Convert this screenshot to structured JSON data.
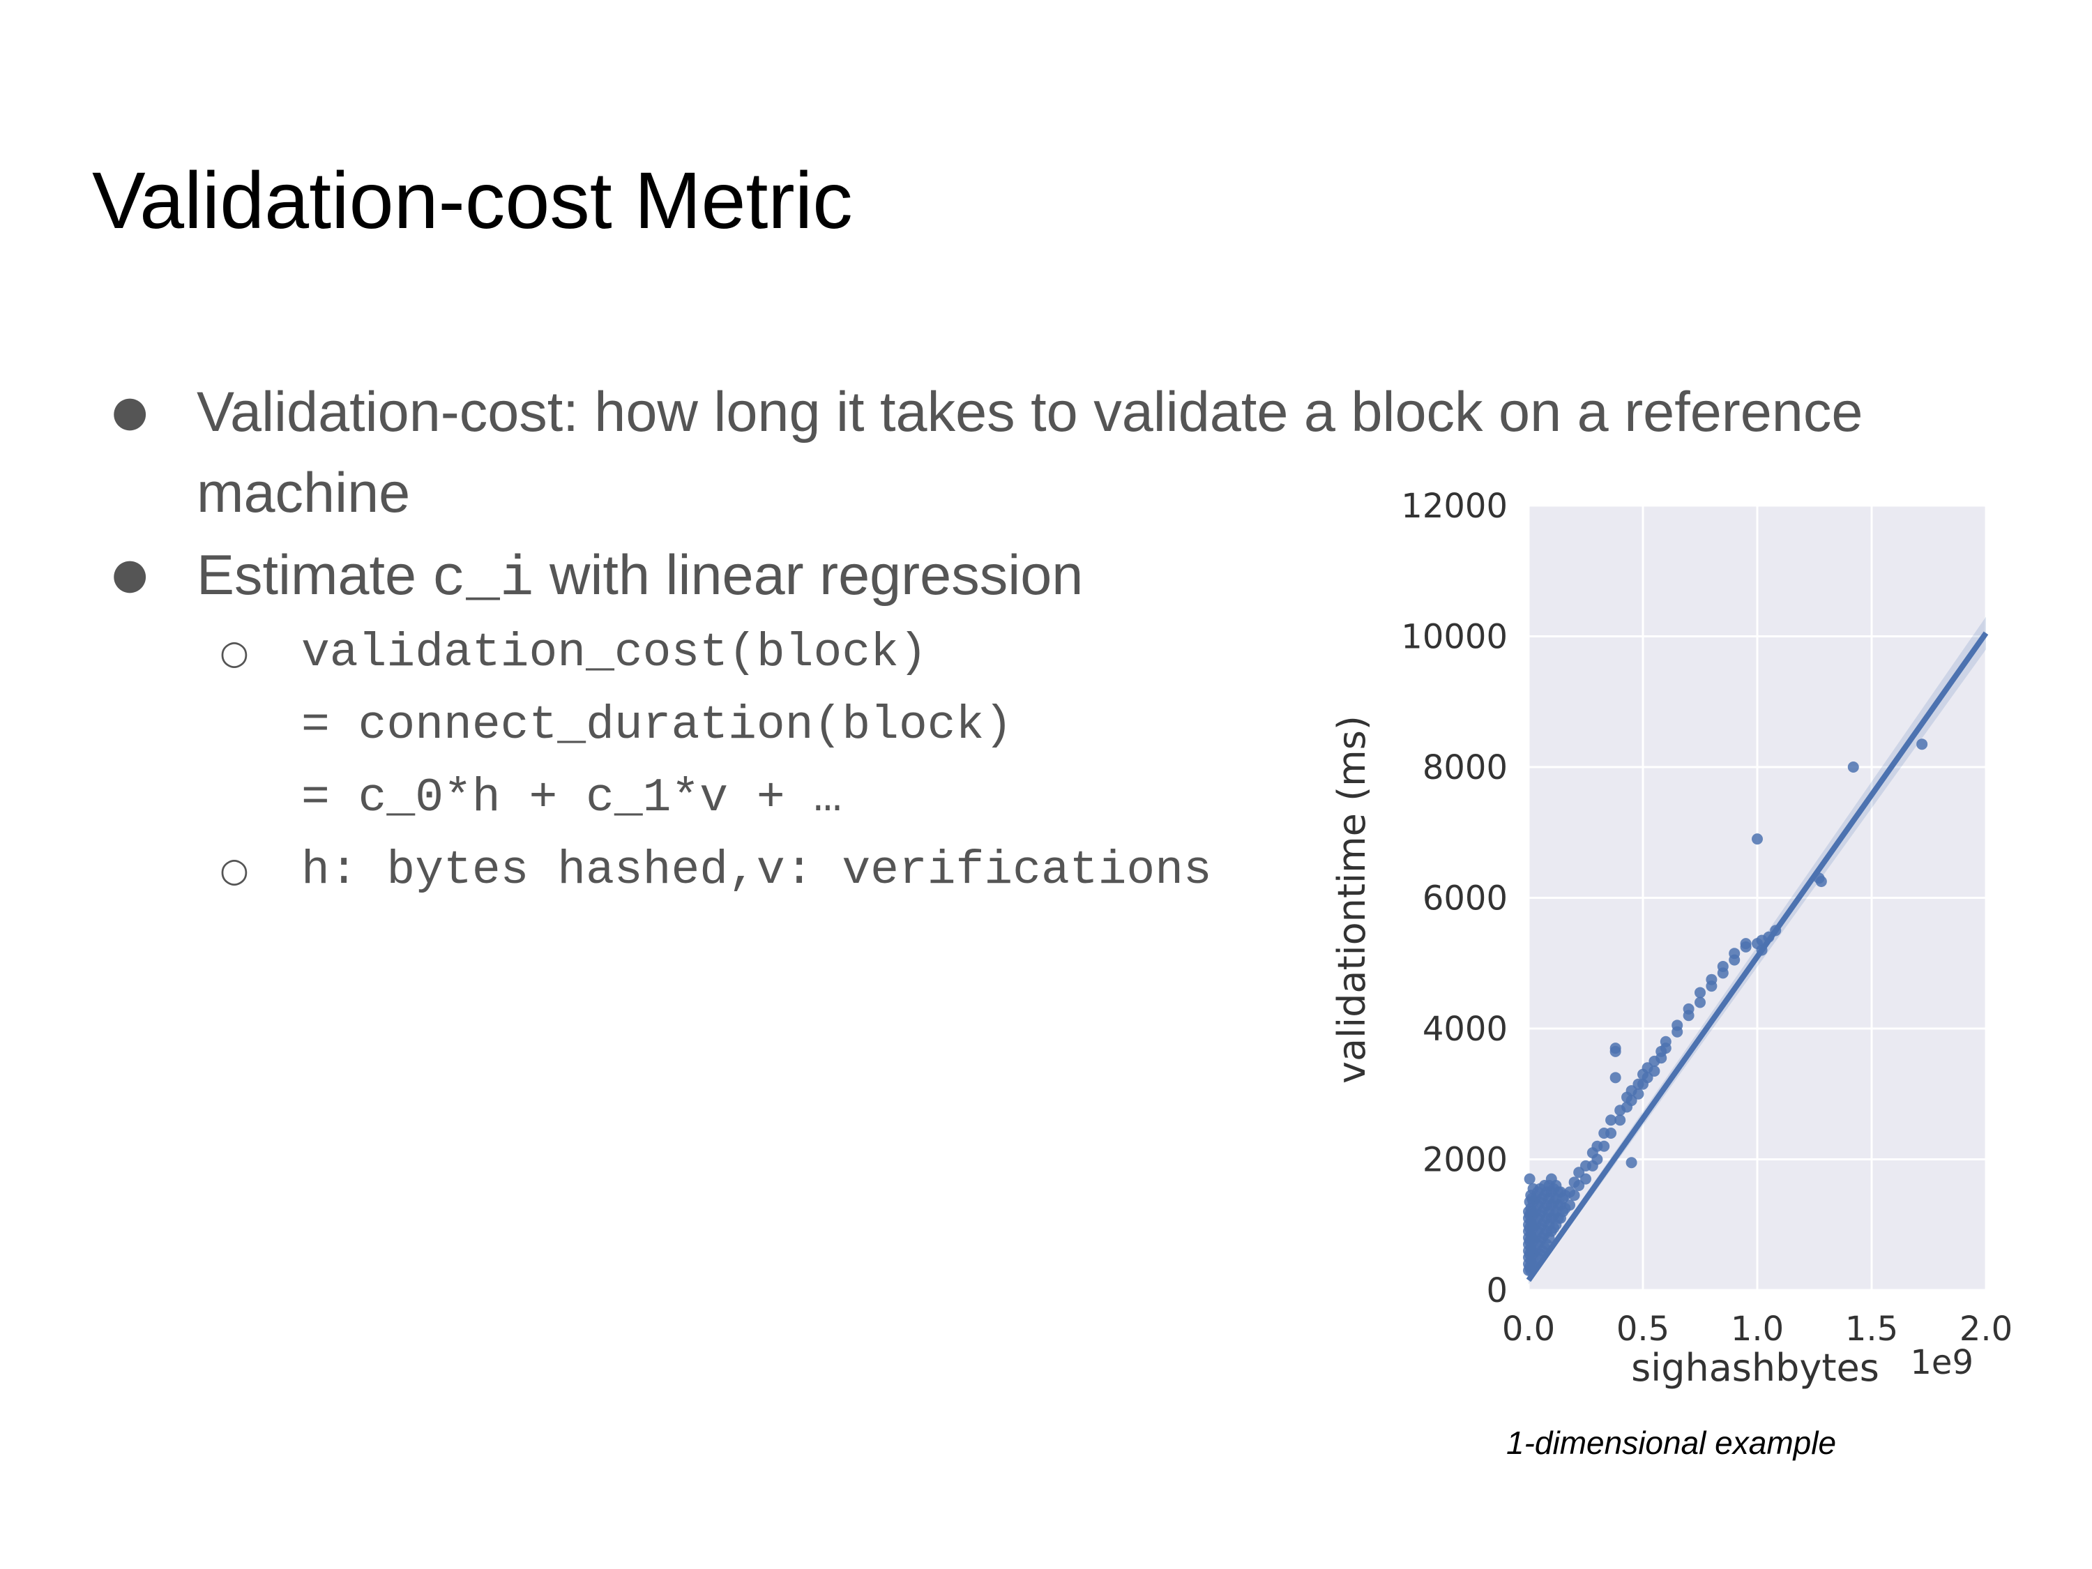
{
  "slide": {
    "title": "Validation-cost Metric",
    "bullets": [
      {
        "line1": "Validation-cost: how long it takes to validate a block on a reference",
        "line2": "machine"
      },
      {
        "prefix": "Estimate ",
        "code": "c_i",
        "suffix": " with linear regression"
      }
    ],
    "code_lines": [
      "validation_cost(block)",
      "= connect_duration(block)",
      "= c_0*h + c_1*v + …",
      "h: bytes hashed,v: verifications"
    ],
    "caption": "1-dimensional example"
  },
  "colors": {
    "plot_bg": "#EAEAF2",
    "points": "#4C72B0",
    "grid": "#FFFFFF",
    "text": "#555555"
  },
  "chart_data": {
    "type": "scatter",
    "xlabel": "sighashbytes",
    "ylabel": "validationtime (ms)",
    "x_offset_label": "1e9",
    "xlim": [
      0.0,
      2.0
    ],
    "ylim": [
      0,
      12000
    ],
    "xticks": [
      "0.0",
      "0.5",
      "1.0",
      "1.5",
      "2.0"
    ],
    "yticks": [
      "0",
      "2000",
      "4000",
      "6000",
      "8000",
      "10000",
      "12000"
    ],
    "grid": true,
    "regression_line": {
      "x": [
        0.0,
        2.0
      ],
      "y": [
        150,
        10050
      ]
    },
    "points": [
      [
        0.0,
        300
      ],
      [
        0.0,
        400
      ],
      [
        0.0,
        500
      ],
      [
        0.0,
        600
      ],
      [
        0.0,
        700
      ],
      [
        0.0,
        800
      ],
      [
        0.0,
        900
      ],
      [
        0.0,
        1000
      ],
      [
        0.0,
        1100
      ],
      [
        0.0,
        1200
      ],
      [
        0.005,
        350
      ],
      [
        0.005,
        550
      ],
      [
        0.005,
        750
      ],
      [
        0.005,
        950
      ],
      [
        0.005,
        1150
      ],
      [
        0.005,
        1350
      ],
      [
        0.005,
        1700
      ],
      [
        0.01,
        300
      ],
      [
        0.01,
        450
      ],
      [
        0.01,
        650
      ],
      [
        0.01,
        850
      ],
      [
        0.01,
        1050
      ],
      [
        0.01,
        1250
      ],
      [
        0.01,
        1450
      ],
      [
        0.015,
        400
      ],
      [
        0.015,
        600
      ],
      [
        0.015,
        800
      ],
      [
        0.015,
        1000
      ],
      [
        0.015,
        1200
      ],
      [
        0.015,
        1400
      ],
      [
        0.02,
        350
      ],
      [
        0.02,
        550
      ],
      [
        0.02,
        750
      ],
      [
        0.02,
        950
      ],
      [
        0.02,
        1150
      ],
      [
        0.02,
        1350
      ],
      [
        0.02,
        1550
      ],
      [
        0.03,
        400
      ],
      [
        0.03,
        600
      ],
      [
        0.03,
        800
      ],
      [
        0.03,
        1000
      ],
      [
        0.03,
        1200
      ],
      [
        0.03,
        1400
      ],
      [
        0.04,
        500
      ],
      [
        0.04,
        700
      ],
      [
        0.04,
        900
      ],
      [
        0.04,
        1100
      ],
      [
        0.04,
        1300
      ],
      [
        0.04,
        1500
      ],
      [
        0.05,
        550
      ],
      [
        0.05,
        750
      ],
      [
        0.05,
        950
      ],
      [
        0.05,
        1150
      ],
      [
        0.05,
        1350
      ],
      [
        0.05,
        1550
      ],
      [
        0.06,
        600
      ],
      [
        0.06,
        800
      ],
      [
        0.06,
        1000
      ],
      [
        0.06,
        1200
      ],
      [
        0.06,
        1400
      ],
      [
        0.07,
        650
      ],
      [
        0.07,
        850
      ],
      [
        0.07,
        1050
      ],
      [
        0.07,
        1250
      ],
      [
        0.07,
        1450
      ],
      [
        0.07,
        1600
      ],
      [
        0.08,
        700
      ],
      [
        0.08,
        900
      ],
      [
        0.08,
        1100
      ],
      [
        0.08,
        1300
      ],
      [
        0.08,
        1500
      ],
      [
        0.09,
        800
      ],
      [
        0.09,
        1000
      ],
      [
        0.09,
        1200
      ],
      [
        0.09,
        1400
      ],
      [
        0.09,
        1600
      ],
      [
        0.1,
        900
      ],
      [
        0.1,
        1100
      ],
      [
        0.1,
        1300
      ],
      [
        0.1,
        1500
      ],
      [
        0.1,
        1700
      ],
      [
        0.11,
        950
      ],
      [
        0.11,
        1150
      ],
      [
        0.11,
        1350
      ],
      [
        0.11,
        1550
      ],
      [
        0.12,
        1000
      ],
      [
        0.12,
        1200
      ],
      [
        0.12,
        1400
      ],
      [
        0.12,
        1600
      ],
      [
        0.13,
        1100
      ],
      [
        0.13,
        1300
      ],
      [
        0.13,
        1500
      ],
      [
        0.14,
        1100
      ],
      [
        0.14,
        1300
      ],
      [
        0.14,
        1500
      ],
      [
        0.15,
        1200
      ],
      [
        0.15,
        1400
      ],
      [
        0.16,
        1250
      ],
      [
        0.16,
        1450
      ],
      [
        0.18,
        1300
      ],
      [
        0.18,
        1500
      ],
      [
        0.2,
        1450
      ],
      [
        0.2,
        1650
      ],
      [
        0.22,
        1600
      ],
      [
        0.22,
        1800
      ],
      [
        0.25,
        1700
      ],
      [
        0.25,
        1900
      ],
      [
        0.28,
        1900
      ],
      [
        0.28,
        2100
      ],
      [
        0.3,
        2000
      ],
      [
        0.3,
        2200
      ],
      [
        0.33,
        2200
      ],
      [
        0.33,
        2400
      ],
      [
        0.36,
        2400
      ],
      [
        0.36,
        2600
      ],
      [
        0.38,
        3250
      ],
      [
        0.38,
        3650
      ],
      [
        0.38,
        3700
      ],
      [
        0.4,
        2600
      ],
      [
        0.4,
        2750
      ],
      [
        0.43,
        2800
      ],
      [
        0.43,
        2950
      ],
      [
        0.45,
        1950
      ],
      [
        0.45,
        2900
      ],
      [
        0.45,
        3050
      ],
      [
        0.48,
        3000
      ],
      [
        0.48,
        3150
      ],
      [
        0.5,
        3150
      ],
      [
        0.5,
        3300
      ],
      [
        0.52,
        3250
      ],
      [
        0.52,
        3400
      ],
      [
        0.55,
        3350
      ],
      [
        0.55,
        3500
      ],
      [
        0.58,
        3550
      ],
      [
        0.58,
        3650
      ],
      [
        0.6,
        3700
      ],
      [
        0.6,
        3800
      ],
      [
        0.65,
        3950
      ],
      [
        0.65,
        4050
      ],
      [
        0.7,
        4200
      ],
      [
        0.7,
        4300
      ],
      [
        0.75,
        4400
      ],
      [
        0.75,
        4550
      ],
      [
        0.8,
        4650
      ],
      [
        0.8,
        4750
      ],
      [
        0.85,
        4850
      ],
      [
        0.85,
        4950
      ],
      [
        0.9,
        5050
      ],
      [
        0.9,
        5150
      ],
      [
        0.95,
        5250
      ],
      [
        0.95,
        5300
      ],
      [
        1.0,
        6900
      ],
      [
        1.0,
        5300
      ],
      [
        1.02,
        5200
      ],
      [
        1.02,
        5350
      ],
      [
        1.05,
        5400
      ],
      [
        1.08,
        5500
      ],
      [
        1.27,
        6300
      ],
      [
        1.28,
        6250
      ],
      [
        1.42,
        8000
      ],
      [
        1.72,
        8350
      ]
    ]
  }
}
